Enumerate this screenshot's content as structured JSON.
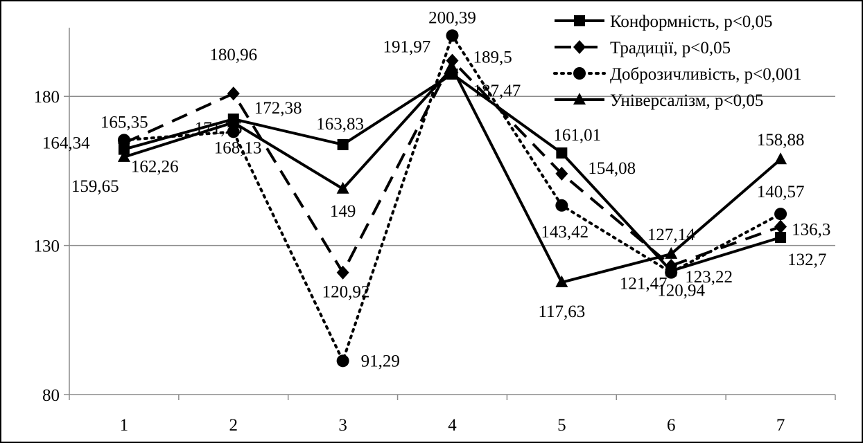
{
  "chart_data": {
    "type": "line",
    "title": "",
    "xlabel": "",
    "ylabel": "",
    "categories": [
      "1",
      "2",
      "3",
      "4",
      "5",
      "6",
      "7"
    ],
    "ylim": [
      80,
      210
    ],
    "yticks": [
      "80",
      "130",
      "180"
    ],
    "ytick_values": [
      80,
      130,
      180
    ],
    "grid": "horizontal",
    "legend_position": "top-right",
    "series": [
      {
        "name": "Конформність, р<0,05",
        "values": [
          162.26,
          172.38,
          163.83,
          187.47,
          161.01,
          121.47,
          132.7
        ],
        "labels": [
          "162,26",
          "172,38",
          "163,83",
          "187,47",
          "161,01",
          "121,47",
          "132,7"
        ],
        "color": "#000000",
        "style": "solid",
        "marker": "square"
      },
      {
        "name": "Традиції, р<0,05",
        "values": [
          164.34,
          180.96,
          120.92,
          191.97,
          154.08,
          123.22,
          136.3
        ],
        "labels": [
          "164,34",
          "180,96",
          "120,92",
          "191,97",
          "154,08",
          "123,22",
          "136,3"
        ],
        "color": "#000000",
        "style": "dash",
        "marker": "diamond"
      },
      {
        "name": "Доброзичливість, р<0,001",
        "values": [
          165.35,
          168.13,
          91.29,
          200.39,
          143.42,
          120.94,
          140.57
        ],
        "labels": [
          "165,35",
          "168,13",
          "91,29",
          "200,39",
          "143,42",
          "120,94",
          "140,57"
        ],
        "color": "#000000",
        "style": "dot",
        "marker": "circle"
      },
      {
        "name": "Універсалізм, р<0,05",
        "values": [
          159.65,
          171.25,
          149,
          189.5,
          117.63,
          127.14,
          158.88
        ],
        "labels": [
          "159,65",
          "171,25",
          "149",
          "189,5",
          "117,63",
          "127,14",
          "158,88"
        ],
        "color": "#000000",
        "style": "solid",
        "marker": "triangle"
      }
    ]
  }
}
